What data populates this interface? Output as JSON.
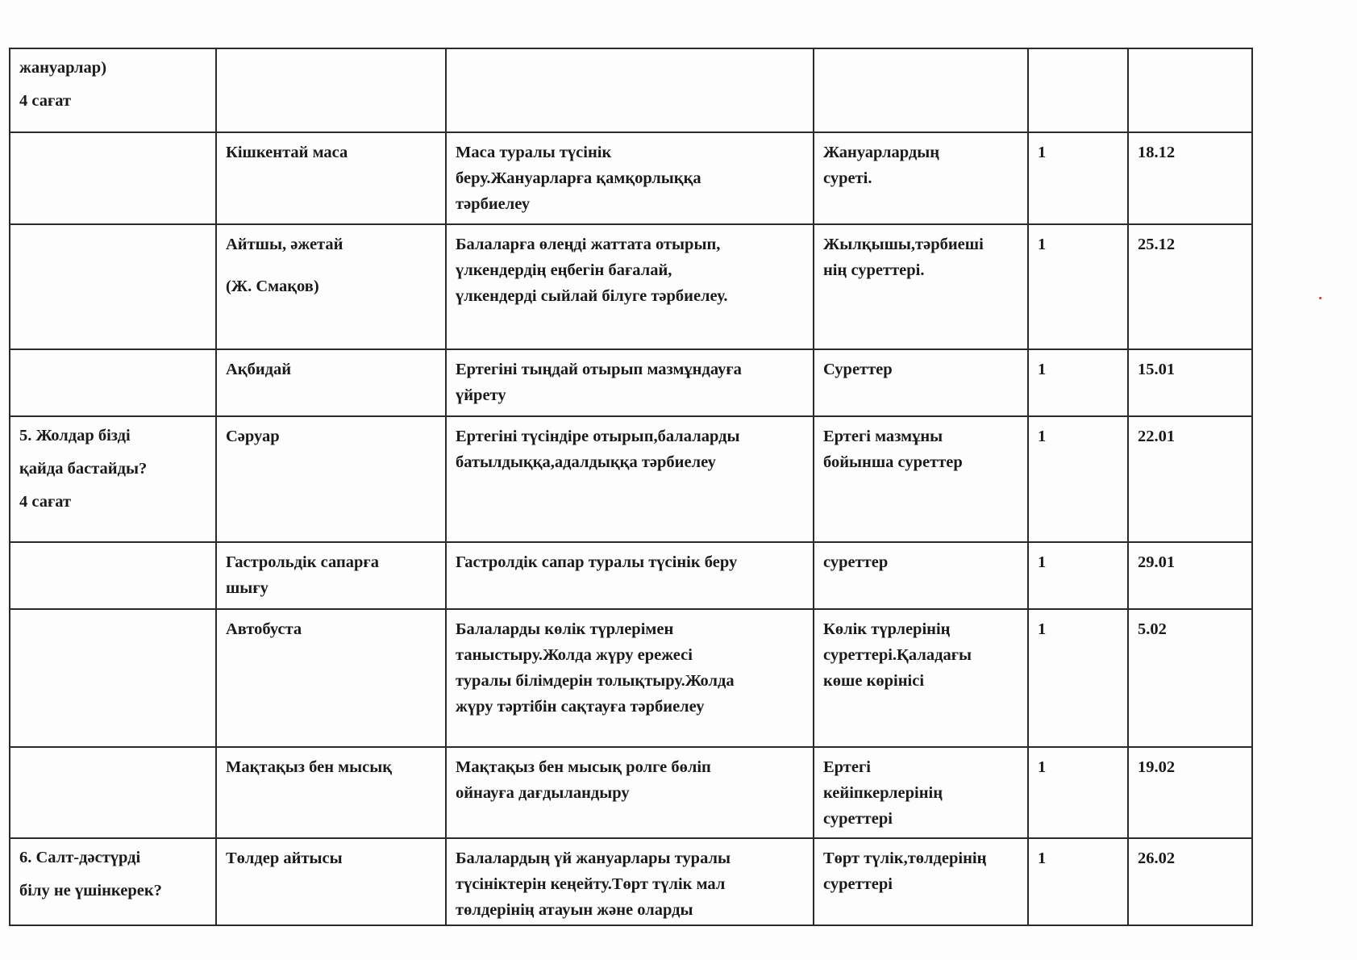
{
  "rows": [
    {
      "topic": [
        "жануарлар)",
        "4 сағат"
      ],
      "title": [],
      "goal": [],
      "materials": [],
      "hours": "",
      "date": ""
    },
    {
      "topic": [],
      "title": [
        "Кішкентай маса"
      ],
      "goal": [
        "Маса туралы түсінік",
        "беру.Жануарларға қамқорлыққа",
        "тәрбиелеу"
      ],
      "materials": [
        "Жануарлардың",
        "суреті."
      ],
      "hours": "1",
      "date": "18.12"
    },
    {
      "topic": [],
      "title": [
        "Айтшы, әжетай",
        "(Ж. Смақов)"
      ],
      "goal": [
        "Балаларға өлеңді жаттата отырып,",
        "үлкендердің еңбегін бағалай,",
        "үлкендерді сыйлай білуге тәрбиелеу."
      ],
      "materials": [
        "Жылқышы,тәрбиеші",
        "нің суреттері."
      ],
      "hours": "1",
      "date": "25.12"
    },
    {
      "topic": [],
      "title": [
        "Ақбидай"
      ],
      "goal": [
        "Ертегіні тыңдай отырып мазмұндауға",
        "үйрету"
      ],
      "materials": [
        "Суреттер"
      ],
      "hours": "1",
      "date": "15.01"
    },
    {
      "topic": [
        "5. Жолдар бізді",
        "қайда бастайды?",
        "4 сағат"
      ],
      "title": [
        "Сәруар"
      ],
      "goal": [
        "Ертегіні түсіндіре отырып,балаларды",
        "батылдыққа,адалдыққа тәрбиелеу"
      ],
      "materials": [
        "Ертегі мазмұны",
        "бойынша суреттер"
      ],
      "hours": "1",
      "date": "22.01"
    },
    {
      "topic": [],
      "title": [
        "Гастрольдік  сапарға",
        "шығу"
      ],
      "goal": [
        "Гастролдік сапар туралы түсінік беру"
      ],
      "materials": [
        "суреттер"
      ],
      "hours": "1",
      "date": "29.01"
    },
    {
      "topic": [],
      "title": [
        "Автобуста"
      ],
      "goal": [
        "Балаларды көлік түрлерімен",
        "таныстыру.Жолда жүру ережесі",
        "туралы білімдерін толықтыру.Жолда",
        "жүру тәртібін сақтауға тәрбиелеу"
      ],
      "materials": [
        "Көлік түрлерінің",
        "суреттері.Қаладағы",
        "көше көрінісі"
      ],
      "hours": "1",
      "date": "5.02"
    },
    {
      "topic": [],
      "title": [
        "Мақтақыз бен мысық"
      ],
      "goal": [
        "Мақтақыз бен мысық ролге бөліп",
        "ойнауға дағдыландыру"
      ],
      "materials": [
        "Ертегі",
        "кейіпкерлерінің",
        "суреттері"
      ],
      "hours": "1",
      "date": "19.02"
    },
    {
      "topic": [
        "6. Салт-дәстүрді",
        "білу не үшінкерек?"
      ],
      "title": [
        "Төлдер айтысы"
      ],
      "goal": [
        "Балалардың үй жануарлары туралы",
        "түсініктерін кеңейту.Төрт түлік мал",
        "төлдерінің атауын және оларды"
      ],
      "materials": [
        "Төрт түлік,төлдерінің",
        "суреттері"
      ],
      "hours": "1",
      "date": "26.02"
    }
  ]
}
